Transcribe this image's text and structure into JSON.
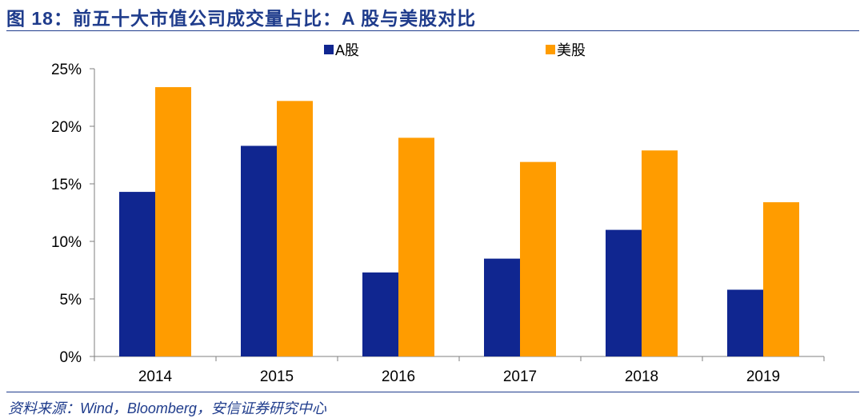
{
  "header": {
    "title": "图 18：前五十大市值公司成交量占比：A 股与美股对比"
  },
  "footer": {
    "source": "资料来源：Wind，Bloomberg，安信证券研究中心"
  },
  "chart_data": {
    "type": "bar",
    "categories": [
      "2014",
      "2015",
      "2016",
      "2017",
      "2018",
      "2019"
    ],
    "series": [
      {
        "name": "A股",
        "color": "#102690",
        "values": [
          14.3,
          18.3,
          7.3,
          8.5,
          11.0,
          5.8
        ]
      },
      {
        "name": "美股",
        "color": "#ff9c00",
        "values": [
          23.4,
          22.2,
          19.0,
          16.9,
          17.9,
          13.4
        ]
      }
    ],
    "yticks": [
      "0%",
      "5%",
      "10%",
      "15%",
      "20%",
      "25%"
    ],
    "ylim": [
      0,
      25
    ],
    "unit": "%",
    "legend": "top",
    "grid": false
  }
}
